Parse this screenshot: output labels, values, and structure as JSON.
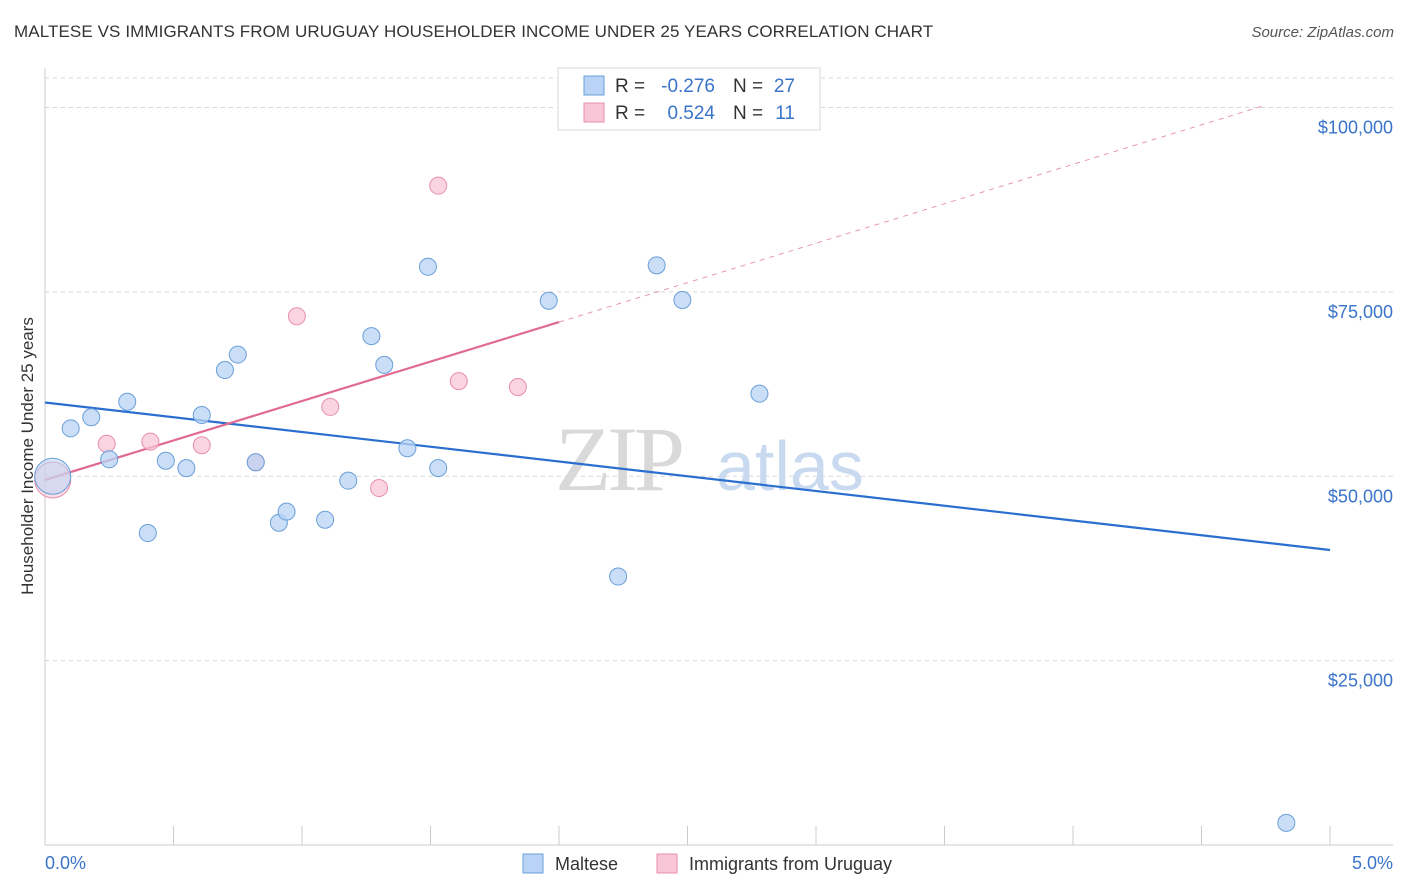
{
  "title": "MALTESE VS IMMIGRANTS FROM URUGUAY HOUSEHOLDER INCOME UNDER 25 YEARS CORRELATION CHART",
  "source": "Source: ZipAtlas.com",
  "watermark": {
    "zip": "ZIP",
    "atlas": "atlas"
  },
  "colors": {
    "maltese_fill": "#b8d3f5",
    "maltese_stroke": "#6a9fd8",
    "maltese_line": "#2a6fcf",
    "uruguay_fill": "#f8c6d6",
    "uruguay_stroke": "#e88fac",
    "uruguay_line": "#e06a92",
    "tick_label": "#3a74c8",
    "grid": "#d8d8d8"
  },
  "legend_top": [
    {
      "r_label": "R =",
      "r_value": "-0.276",
      "n_label": "N =",
      "n_value": "27"
    },
    {
      "r_label": "R =",
      "r_value": "0.524",
      "n_label": "N =",
      "n_value": "11"
    }
  ],
  "legend_bottom": [
    "Maltese",
    "Immigrants from Uruguay"
  ],
  "chart_data": {
    "type": "scatter",
    "title": "MALTESE VS IMMIGRANTS FROM URUGUAY HOUSEHOLDER INCOME UNDER 25 YEARS CORRELATION CHART",
    "xlabel": "",
    "ylabel": "Householder Income Under 25 years",
    "xlim": [
      0,
      5
    ],
    "ylim": [
      0,
      104000
    ],
    "x_tick_labels": [
      "0.0%",
      "5.0%"
    ],
    "y_ticks": [
      25000,
      50000,
      75000,
      100000
    ],
    "y_tick_labels": [
      "$25,000",
      "$50,000",
      "$75,000",
      "$100,000"
    ],
    "grid": true,
    "legend_position": "top-center",
    "series": [
      {
        "name": "Maltese",
        "R": -0.276,
        "N": 27,
        "trend": {
          "x": [
            0,
            5
          ],
          "y": [
            60000,
            40000
          ]
        },
        "points": [
          {
            "x": 0.03,
            "y": 50000,
            "big": true
          },
          {
            "x": 0.1,
            "y": 56500
          },
          {
            "x": 0.18,
            "y": 58000
          },
          {
            "x": 0.25,
            "y": 52300
          },
          {
            "x": 0.32,
            "y": 60100
          },
          {
            "x": 0.4,
            "y": 42300
          },
          {
            "x": 0.47,
            "y": 52100
          },
          {
            "x": 0.55,
            "y": 51100
          },
          {
            "x": 0.61,
            "y": 58300
          },
          {
            "x": 0.7,
            "y": 64400
          },
          {
            "x": 0.75,
            "y": 66500
          },
          {
            "x": 0.82,
            "y": 51900
          },
          {
            "x": 0.91,
            "y": 43700
          },
          {
            "x": 0.94,
            "y": 45200
          },
          {
            "x": 1.09,
            "y": 44100
          },
          {
            "x": 1.18,
            "y": 49400
          },
          {
            "x": 1.27,
            "y": 69000
          },
          {
            "x": 1.32,
            "y": 65100
          },
          {
            "x": 1.41,
            "y": 53800
          },
          {
            "x": 1.49,
            "y": 78400
          },
          {
            "x": 1.53,
            "y": 51100
          },
          {
            "x": 1.96,
            "y": 73800
          },
          {
            "x": 2.23,
            "y": 36400
          },
          {
            "x": 2.38,
            "y": 78600
          },
          {
            "x": 2.48,
            "y": 73900
          },
          {
            "x": 2.78,
            "y": 61200
          },
          {
            "x": 4.83,
            "y": 3000
          }
        ]
      },
      {
        "name": "Immigrants from Uruguay",
        "R": 0.524,
        "N": 11,
        "trend": {
          "x": [
            0,
            2,
            5
          ],
          "y": [
            49500,
            70900,
            103000
          ]
        },
        "trend_solid_until_x": 2,
        "points": [
          {
            "x": 0.03,
            "y": 49500,
            "big": true
          },
          {
            "x": 0.24,
            "y": 54400
          },
          {
            "x": 0.41,
            "y": 54700
          },
          {
            "x": 0.61,
            "y": 54200
          },
          {
            "x": 0.82,
            "y": 51900
          },
          {
            "x": 0.98,
            "y": 71700
          },
          {
            "x": 1.11,
            "y": 59400
          },
          {
            "x": 1.3,
            "y": 48400
          },
          {
            "x": 1.53,
            "y": 89400
          },
          {
            "x": 1.61,
            "y": 62900
          },
          {
            "x": 1.84,
            "y": 62100
          }
        ]
      }
    ]
  }
}
